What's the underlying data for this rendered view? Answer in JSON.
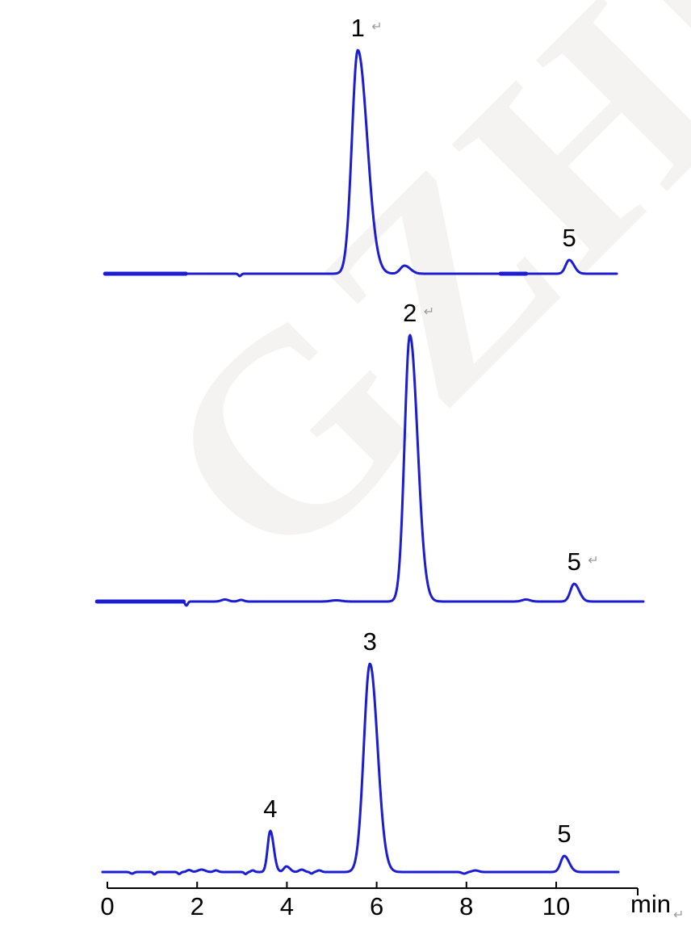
{
  "watermark": {
    "text": "GZHL",
    "color": "#f4f3f1"
  },
  "icons": {
    "return_mark": "↵"
  },
  "colors": {
    "trace_blue": "#1c1cd1",
    "axis_black": "#000000",
    "label_black": "#000000",
    "return_mark_gray": "#9b9b9b"
  },
  "chart_data": {
    "type": "line",
    "title": "",
    "subtitle": "Three stacked HPLC chromatograms sharing one time axis",
    "xlabel": "min",
    "xlabel_return_mark": true,
    "ylabel": "",
    "grid": false,
    "legend": false,
    "x_axis": {
      "unit": "min",
      "ticks": [
        0,
        2,
        4,
        6,
        8,
        10
      ],
      "range_min": [
        0,
        11.8
      ],
      "tick_side": "up",
      "end_tick_side": "down"
    },
    "traces": [
      {
        "name": "chromatogram-top",
        "x_start_min": -0.05,
        "x_end_min": 11.35,
        "peaks": [
          {
            "label": "1",
            "rt_min": 5.58,
            "height_au": 277,
            "fwhm_min": 0.4,
            "asym": 1.6,
            "return_mark": true
          },
          {
            "label": "",
            "rt_min": 6.62,
            "height_au": 10,
            "fwhm_min": 0.26,
            "asym": 1.4,
            "return_mark": false
          },
          {
            "label": "5",
            "rt_min": 10.29,
            "height_au": 17,
            "fwhm_min": 0.22,
            "asym": 1.35,
            "return_mark": false
          }
        ],
        "baseline_noise": [
          {
            "rt_min": 2.95,
            "amp_au": -3,
            "width_min": 0.03
          }
        ],
        "thick_baseline_segments_min": [
          [
            -0.05,
            1.75
          ],
          [
            8.76,
            9.33
          ]
        ]
      },
      {
        "name": "chromatogram-middle",
        "x_start_min": -0.23,
        "x_end_min": 11.94,
        "peaks": [
          {
            "label": "2",
            "rt_min": 6.74,
            "height_au": 330,
            "fwhm_min": 0.34,
            "asym": 1.45,
            "return_mark": true
          },
          {
            "label": "5",
            "rt_min": 10.4,
            "height_au": 22,
            "fwhm_min": 0.23,
            "asym": 1.35,
            "return_mark": true
          }
        ],
        "baseline_noise": [
          {
            "rt_min": 1.76,
            "amp_au": -5,
            "width_min": 0.03
          },
          {
            "rt_min": 2.62,
            "amp_au": 2.5,
            "width_min": 0.08
          },
          {
            "rt_min": 2.98,
            "amp_au": 2,
            "width_min": 0.06
          },
          {
            "rt_min": 5.1,
            "amp_au": 1.5,
            "width_min": 0.12
          },
          {
            "rt_min": 9.33,
            "amp_au": 2.5,
            "width_min": 0.09
          }
        ],
        "thick_baseline_segments_min": [
          [
            -0.23,
            1.7
          ]
        ]
      },
      {
        "name": "chromatogram-bottom",
        "x_start_min": -0.11,
        "x_end_min": 11.39,
        "peaks": [
          {
            "label": "4",
            "rt_min": 3.63,
            "height_au": 51,
            "fwhm_min": 0.16,
            "asym": 1.3,
            "return_mark": false
          },
          {
            "label": "",
            "rt_min": 3.99,
            "height_au": 7,
            "fwhm_min": 0.16,
            "asym": 1.3,
            "return_mark": false
          },
          {
            "label": "3",
            "rt_min": 5.85,
            "height_au": 258,
            "fwhm_min": 0.36,
            "asym": 1.25,
            "return_mark": false
          },
          {
            "label": "5",
            "rt_min": 10.18,
            "height_au": 20,
            "fwhm_min": 0.22,
            "asym": 1.35,
            "return_mark": false
          }
        ],
        "baseline_noise": [
          {
            "rt_min": 0.55,
            "amp_au": -2,
            "width_min": 0.04
          },
          {
            "rt_min": 1.05,
            "amp_au": -3,
            "width_min": 0.03
          },
          {
            "rt_min": 1.6,
            "amp_au": -2.5,
            "width_min": 0.03
          },
          {
            "rt_min": 1.82,
            "amp_au": 2.5,
            "width_min": 0.05
          },
          {
            "rt_min": 2.1,
            "amp_au": 3,
            "width_min": 0.08
          },
          {
            "rt_min": 2.42,
            "amp_au": 2,
            "width_min": 0.05
          },
          {
            "rt_min": 3.08,
            "amp_au": -2.5,
            "width_min": 0.03
          },
          {
            "rt_min": 3.24,
            "amp_au": 2,
            "width_min": 0.04
          },
          {
            "rt_min": 4.33,
            "amp_au": 3,
            "width_min": 0.06
          },
          {
            "rt_min": 4.55,
            "amp_au": -2,
            "width_min": 0.03
          },
          {
            "rt_min": 4.72,
            "amp_au": 2,
            "width_min": 0.05
          },
          {
            "rt_min": 7.95,
            "amp_au": -2,
            "width_min": 0.05
          },
          {
            "rt_min": 8.2,
            "amp_au": 2,
            "width_min": 0.07
          }
        ],
        "thick_baseline_segments_min": []
      }
    ]
  }
}
